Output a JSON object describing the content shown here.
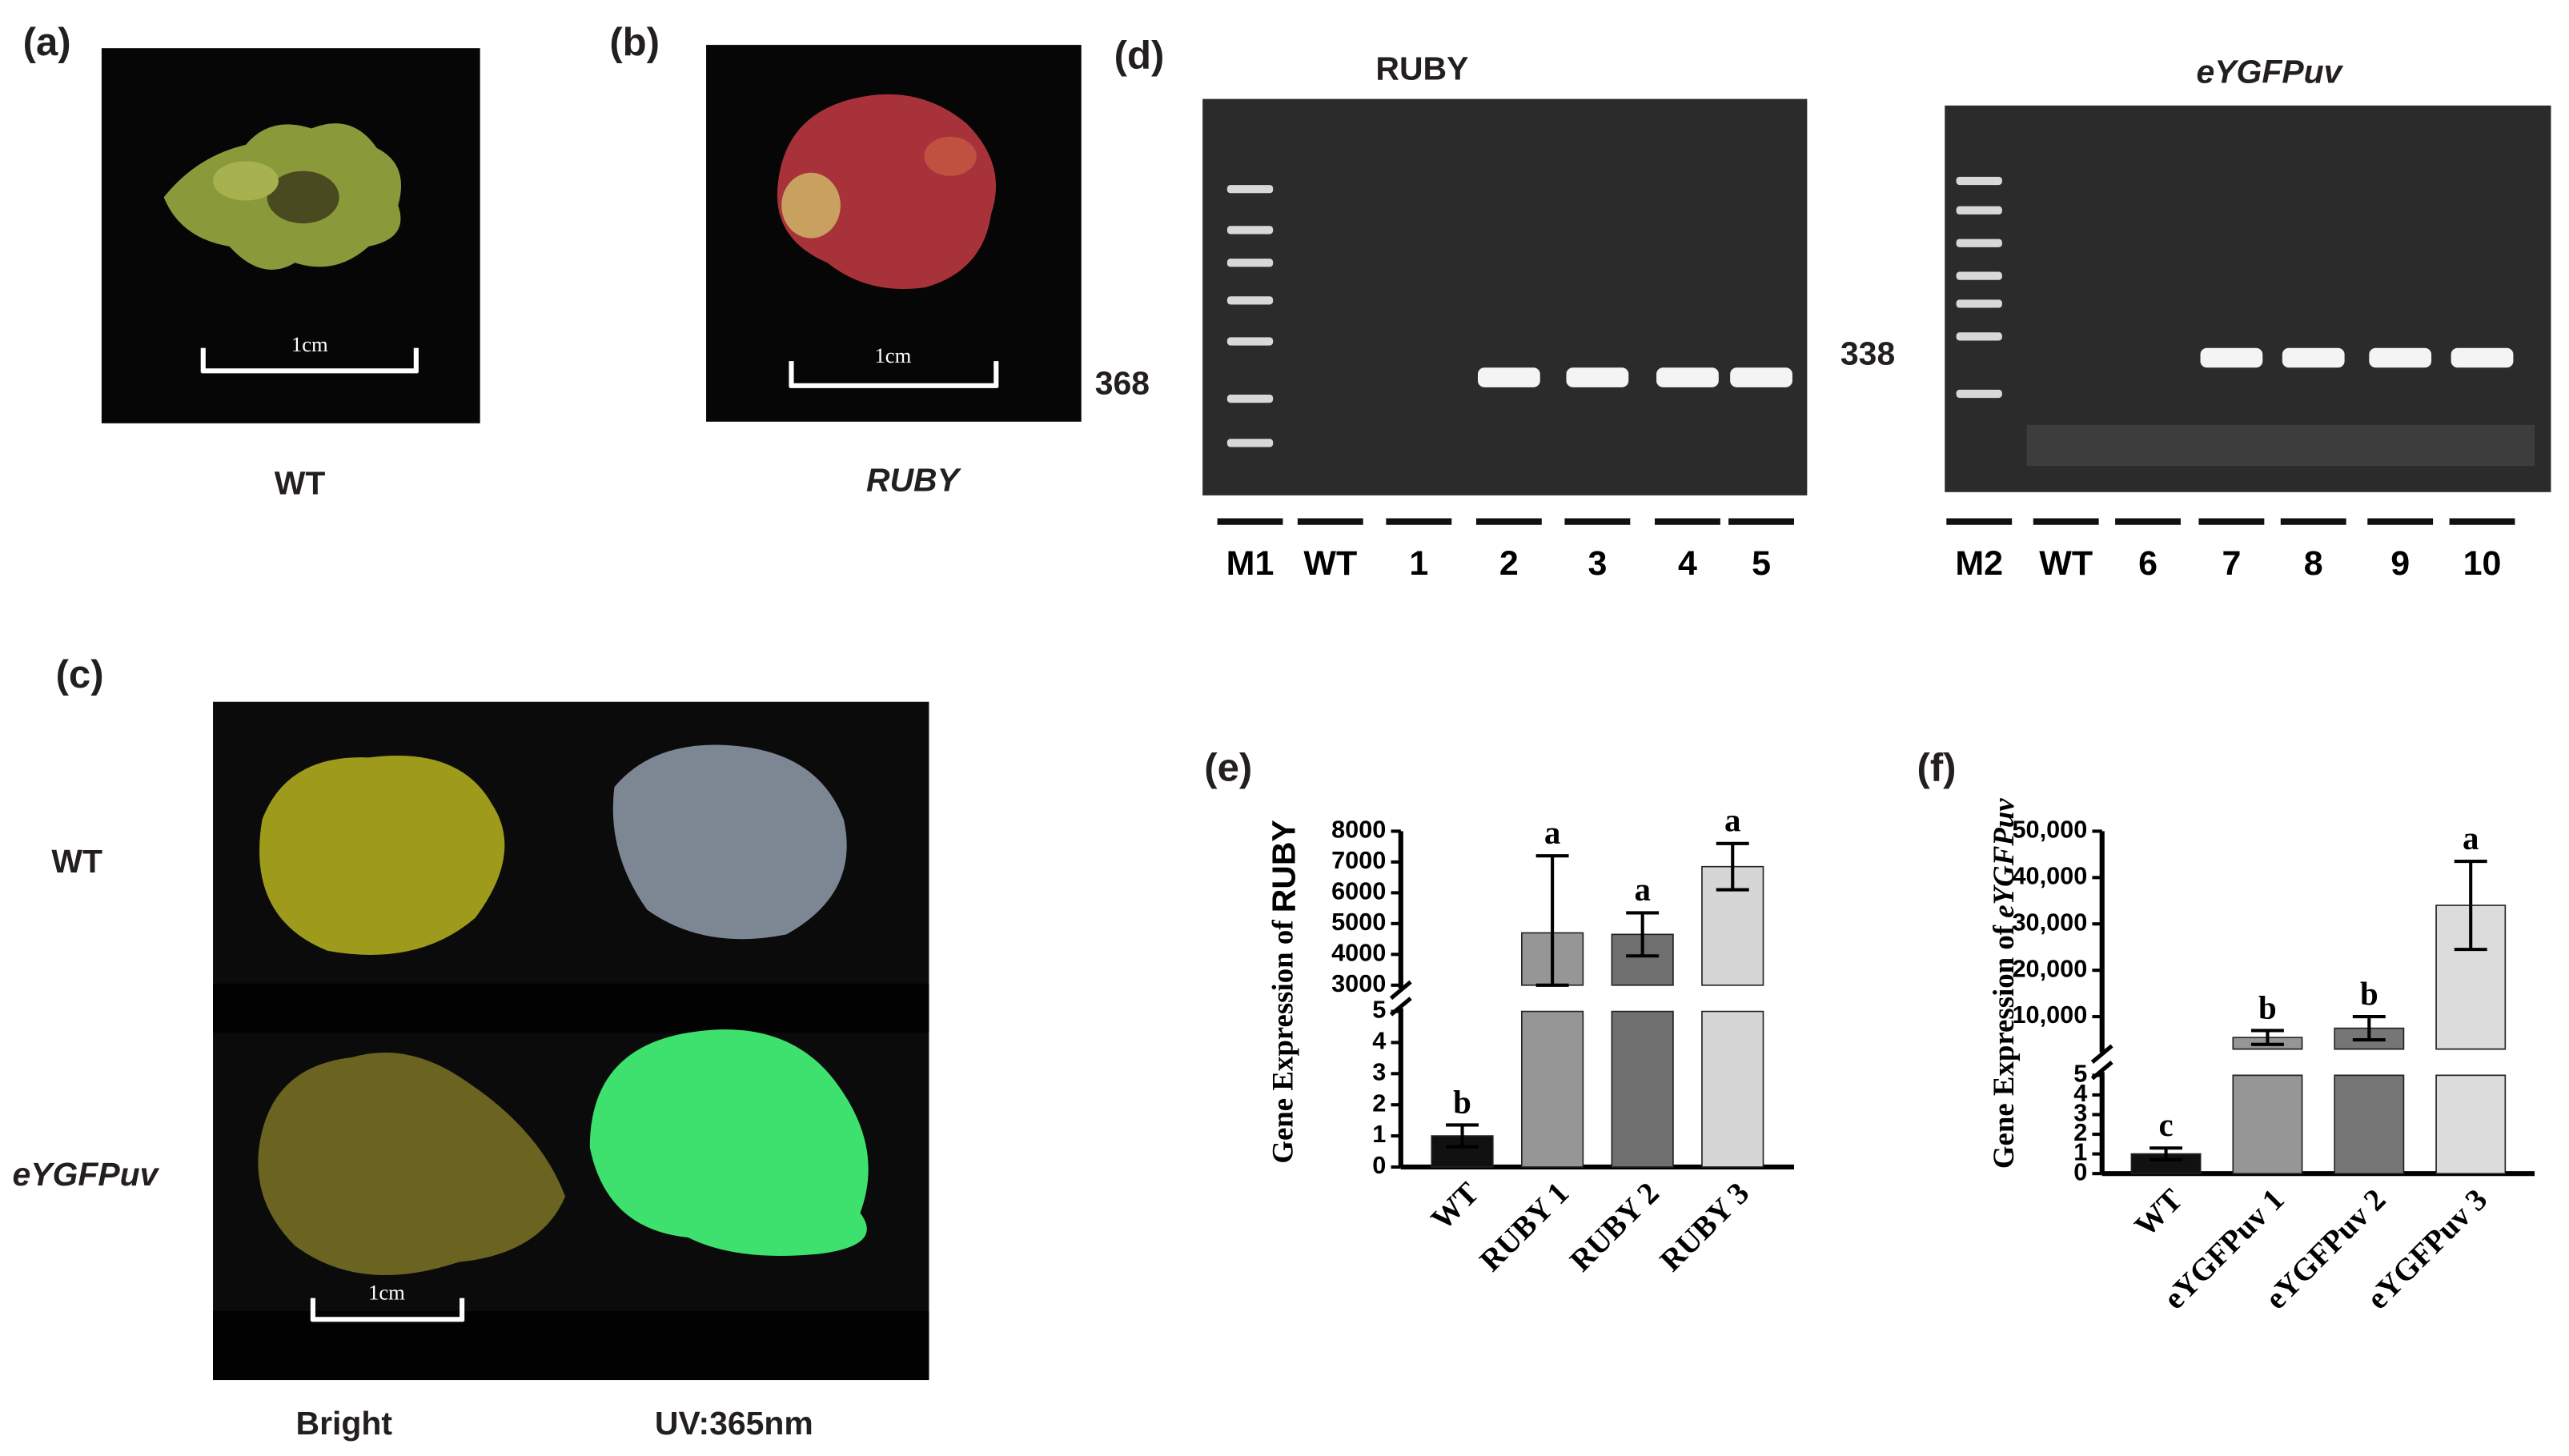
{
  "panels": [
    "(a)",
    "(b)",
    "(c)",
    "(d)",
    "(e)",
    "(f)"
  ],
  "photo_a": {
    "caption": "WT",
    "scale": "1cm"
  },
  "photo_b": {
    "caption": "RUBY",
    "scale": "1cm"
  },
  "photo_c": {
    "rows": [
      "WT",
      "eYGFPuv"
    ],
    "columns": [
      "Bright",
      "UV:365nm"
    ],
    "scale": "1cm"
  },
  "gels": [
    {
      "title": "RUBY",
      "band_size": "368",
      "lanes": [
        "M1",
        "WT",
        "1",
        "2",
        "3",
        "4",
        "5"
      ]
    },
    {
      "title": "eYGFPuv",
      "band_size": "338",
      "lanes": [
        "M2",
        "WT",
        "6",
        "7",
        "8",
        "9",
        "10"
      ]
    }
  ],
  "chart_data": [
    {
      "type": "bar",
      "ylabel": "Gene Expression of ",
      "ylabel_gene": "RUBY",
      "categories": [
        "WT",
        "RUBY 1",
        "RUBY 2",
        "RUBY 3"
      ],
      "values": [
        1,
        4700,
        4650,
        6850
      ],
      "errors": [
        0.35,
        2500,
        700,
        750
      ],
      "letters": [
        "b",
        "a",
        "a",
        "a"
      ],
      "colors": [
        "#111111",
        "#969696",
        "#6f6f6f",
        "#d6d6d6"
      ],
      "ylim": [
        [
          0,
          5
        ],
        [
          3000,
          8000
        ]
      ],
      "yticks": [
        [
          0,
          1,
          2,
          3,
          4,
          5
        ],
        [
          3000,
          4000,
          5000,
          6000,
          7000,
          8000
        ]
      ]
    },
    {
      "type": "bar",
      "ylabel": "Gene Expression of ",
      "ylabel_gene": "eYGFPuv",
      "categories": [
        "WT",
        "eYGFPuv 1",
        "eYGFPuv 2",
        "eYGFPuv 3"
      ],
      "values": [
        1,
        5500,
        7500,
        34000
      ],
      "errors": [
        0.3,
        1500,
        2500,
        9500
      ],
      "letters": [
        "c",
        "b",
        "b",
        "a"
      ],
      "colors": [
        "#111111",
        "#969696",
        "#767676",
        "#dcdcdc"
      ],
      "ylim": [
        [
          0,
          5
        ],
        [
          3000,
          50000
        ]
      ],
      "yticks": [
        [
          0,
          1,
          2,
          3,
          4,
          5
        ],
        [
          {
            "value": 10000,
            "label": "10,000"
          },
          {
            "value": 20000,
            "label": "20,000"
          },
          {
            "value": 30000,
            "label": "30,000"
          },
          {
            "value": 40000,
            "label": "40,000"
          },
          {
            "value": 50000,
            "label": "50,000"
          }
        ]
      ]
    }
  ]
}
